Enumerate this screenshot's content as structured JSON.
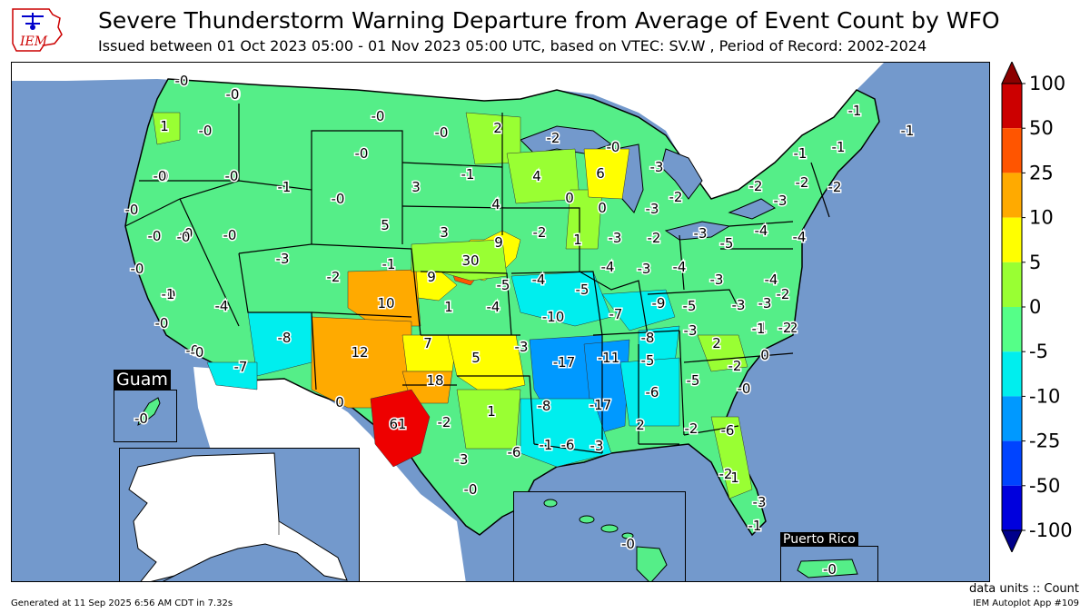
{
  "header": {
    "logo_text": "IEM",
    "title": "Severe Thunderstorm Warning Departure from Average of Event Count by WFO",
    "subtitle": "Issued between 01 Oct 2023 05:00 - 01 Nov 2023 05:00 UTC, based on VTEC: SV.W  , Period of Record: 2002-2024"
  },
  "colorbar": {
    "ticks": [
      "100",
      "50",
      "25",
      "10",
      "5",
      "0",
      "-5",
      "-10",
      "-25",
      "-50",
      "-100"
    ],
    "colors": [
      "#cc0000",
      "#ff5500",
      "#ffaa00",
      "#ffff00",
      "#99ff33",
      "#55ff88",
      "#00eeee",
      "#0099ff",
      "#0044ff",
      "#0000dd"
    ],
    "over_color": "#8b0000",
    "under_color": "#00008b"
  },
  "insets": {
    "guam": {
      "title": "Guam",
      "value": "-0"
    },
    "puerto_rico": {
      "title": "Puerto Rico",
      "value": "-0"
    },
    "hawaii": {
      "value": "-0"
    },
    "alaska": {}
  },
  "wfo_values": [
    {
      "v": "-0"
    },
    {
      "v": "-0"
    },
    {
      "v": "1"
    },
    {
      "v": "-0"
    },
    {
      "v": "-0"
    },
    {
      "v": "-0"
    },
    {
      "v": "-0"
    },
    {
      "v": "-0"
    },
    {
      "v": "-0"
    },
    {
      "v": "-0"
    },
    {
      "v": "-0"
    },
    {
      "v": "-0"
    },
    {
      "v": "2"
    },
    {
      "v": "-2"
    },
    {
      "v": "-0"
    },
    {
      "v": "6"
    },
    {
      "v": "-3"
    },
    {
      "v": "-1"
    },
    {
      "v": "-1"
    },
    {
      "v": "-1"
    },
    {
      "v": "-1"
    },
    {
      "v": "-0"
    },
    {
      "v": "-0"
    },
    {
      "v": "-0"
    },
    {
      "v": "-1"
    },
    {
      "v": "3"
    },
    {
      "v": "-1"
    },
    {
      "v": "4"
    },
    {
      "v": "0"
    },
    {
      "v": "-2"
    },
    {
      "v": "-2"
    },
    {
      "v": "-2"
    },
    {
      "v": "-0"
    },
    {
      "v": "-0"
    },
    {
      "v": "-0"
    },
    {
      "v": "4"
    },
    {
      "v": "0"
    },
    {
      "v": "-3"
    },
    {
      "v": "-3"
    },
    {
      "v": "-2"
    },
    {
      "v": "5"
    },
    {
      "v": "3"
    },
    {
      "v": "9"
    },
    {
      "v": "-2"
    },
    {
      "v": "1"
    },
    {
      "v": "-3"
    },
    {
      "v": "-2"
    },
    {
      "v": "-3"
    },
    {
      "v": "-5"
    },
    {
      "v": "-4"
    },
    {
      "v": "-4"
    },
    {
      "v": "-0"
    },
    {
      "v": "-0"
    },
    {
      "v": "-3"
    },
    {
      "v": "30"
    },
    {
      "v": "-1"
    },
    {
      "v": "-2"
    },
    {
      "v": "9"
    },
    {
      "v": "-5"
    },
    {
      "v": "-4"
    },
    {
      "v": "-4"
    },
    {
      "v": "-3"
    },
    {
      "v": "-4"
    },
    {
      "v": "-3"
    },
    {
      "v": "-4"
    },
    {
      "v": "-3"
    },
    {
      "v": "-0"
    },
    {
      "v": "-1"
    },
    {
      "v": "10"
    },
    {
      "v": "1"
    },
    {
      "v": "-4"
    },
    {
      "v": "-5"
    },
    {
      "v": "-10"
    },
    {
      "v": "-7"
    },
    {
      "v": "-9"
    },
    {
      "v": "-5"
    },
    {
      "v": "-3"
    },
    {
      "v": "-2"
    },
    {
      "v": "-1"
    },
    {
      "v": "-4"
    },
    {
      "v": "-8"
    },
    {
      "v": "12"
    },
    {
      "v": "7"
    },
    {
      "v": "5"
    },
    {
      "v": "-3"
    },
    {
      "v": "-17"
    },
    {
      "v": "-11"
    },
    {
      "v": "-8"
    },
    {
      "v": "-3"
    },
    {
      "v": "-1"
    },
    {
      "v": "-2"
    },
    {
      "v": "-0"
    },
    {
      "v": "-7"
    },
    {
      "v": "2"
    },
    {
      "v": "-2"
    },
    {
      "v": "0"
    },
    {
      "v": "-5"
    },
    {
      "v": "-5"
    },
    {
      "v": "-2"
    },
    {
      "v": "18"
    },
    {
      "v": "0"
    },
    {
      "v": "-6"
    },
    {
      "v": "-0"
    },
    {
      "v": "-17"
    },
    {
      "v": "-8"
    },
    {
      "v": "1"
    },
    {
      "v": "61"
    },
    {
      "v": "-2"
    },
    {
      "v": "-6"
    },
    {
      "v": "-3"
    },
    {
      "v": "2"
    },
    {
      "v": "-2"
    },
    {
      "v": "-6"
    },
    {
      "v": "-6"
    },
    {
      "v": "-3"
    },
    {
      "v": "-1"
    },
    {
      "v": "1"
    },
    {
      "v": "-2"
    },
    {
      "v": "-3"
    },
    {
      "v": "-1"
    },
    {
      "v": "-0"
    }
  ],
  "footer": {
    "units": "data units :: Count",
    "generated": "Generated at 11 Sep 2025 6:56 AM CDT in 7.32s",
    "app": "IEM Autoplot App #109"
  }
}
